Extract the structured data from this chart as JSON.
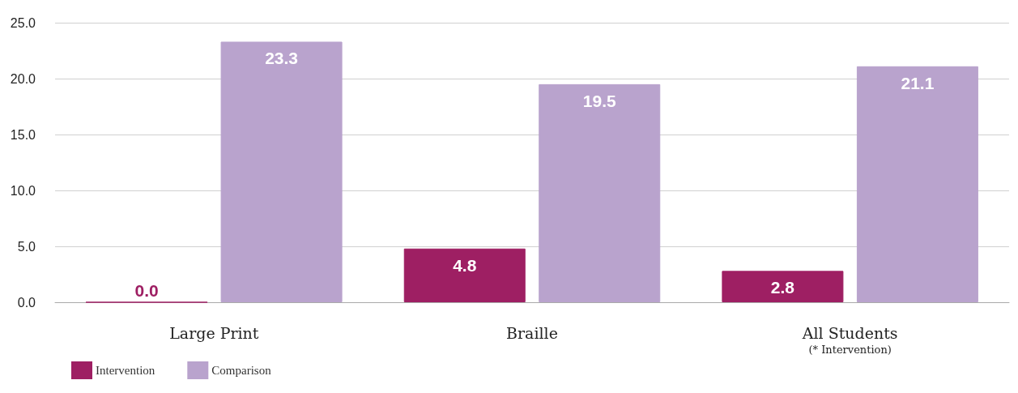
{
  "chart_data": {
    "type": "bar",
    "categories": [
      "Large Print",
      "Braille",
      "All Students\n(* Intervention)"
    ],
    "series": [
      {
        "name": "Intervention",
        "color": "#9e1f63",
        "values": [
          0.0,
          4.8,
          2.8
        ],
        "value_labels": [
          "0.0",
          "4.8",
          "2.8"
        ]
      },
      {
        "name": "Comparison",
        "color": "#b9a3cd",
        "values": [
          23.3,
          19.5,
          21.1
        ],
        "value_labels": [
          "23.3",
          "19.5",
          "21.1"
        ]
      }
    ],
    "ylim": [
      0,
      25
    ],
    "yticks": [
      {
        "value": 0,
        "label": "0.0"
      },
      {
        "value": 5,
        "label": "5.0"
      },
      {
        "value": 10,
        "label": "10.0"
      },
      {
        "value": 15,
        "label": "15.0"
      },
      {
        "value": 20,
        "label": "20.0"
      },
      {
        "value": 25,
        "label": "25.0"
      }
    ],
    "grid": "y",
    "legend": "bottom left"
  }
}
